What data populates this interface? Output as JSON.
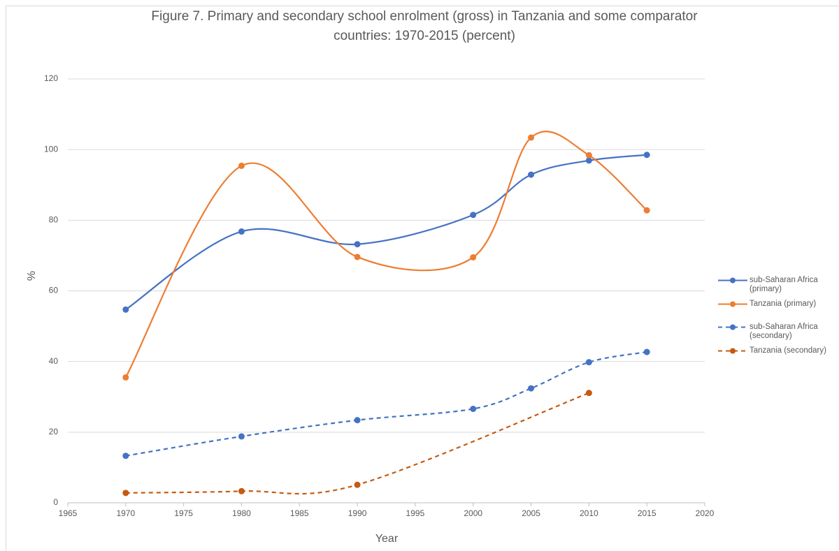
{
  "chart_data": {
    "type": "line",
    "title": "Figure 7. Primary and secondary school enrolment  (gross)  in Tanzania and some comparator countries: 1970-2015 (percent)",
    "x_label": "Year",
    "y_label": "%",
    "xlim": [
      1965,
      2020
    ],
    "xticks": [
      1965,
      1970,
      1975,
      1980,
      1985,
      1990,
      1995,
      2000,
      2005,
      2010,
      2015,
      2020
    ],
    "ylim": [
      0,
      120
    ],
    "yticks": [
      0,
      20,
      40,
      60,
      80,
      100,
      120
    ],
    "grid": true,
    "smooth": true,
    "legend": "right",
    "series": [
      {
        "name": "sub-Saharan Africa (primary)",
        "color": "#4472c4",
        "line_style": "solid",
        "x": [
          1970,
          1980,
          1990,
          2000,
          2005,
          2010,
          2015
        ],
        "values": [
          54.7,
          76.8,
          73.2,
          81.5,
          92.9,
          96.9,
          98.5
        ]
      },
      {
        "name": "Tanzania (primary)",
        "color": "#ed7d31",
        "line_style": "solid",
        "x": [
          1970,
          1980,
          1990,
          2000,
          2005,
          2010,
          2015
        ],
        "values": [
          35.5,
          95.4,
          69.6,
          69.5,
          103.4,
          98.4,
          82.8
        ]
      },
      {
        "name": "sub-Saharan Africa (secondary)",
        "color": "#4472c4",
        "line_style": "dashed",
        "x": [
          1970,
          1980,
          1990,
          2000,
          2005,
          2010,
          2015
        ],
        "values": [
          13.3,
          18.8,
          23.4,
          26.6,
          32.4,
          39.8,
          42.7
        ]
      },
      {
        "name": "Tanzania (secondary)",
        "color": "#c55a11",
        "line_style": "dashed",
        "x": [
          1970,
          1980,
          1990,
          2010
        ],
        "values": [
          2.8,
          3.3,
          5.1,
          31.1
        ]
      }
    ]
  }
}
